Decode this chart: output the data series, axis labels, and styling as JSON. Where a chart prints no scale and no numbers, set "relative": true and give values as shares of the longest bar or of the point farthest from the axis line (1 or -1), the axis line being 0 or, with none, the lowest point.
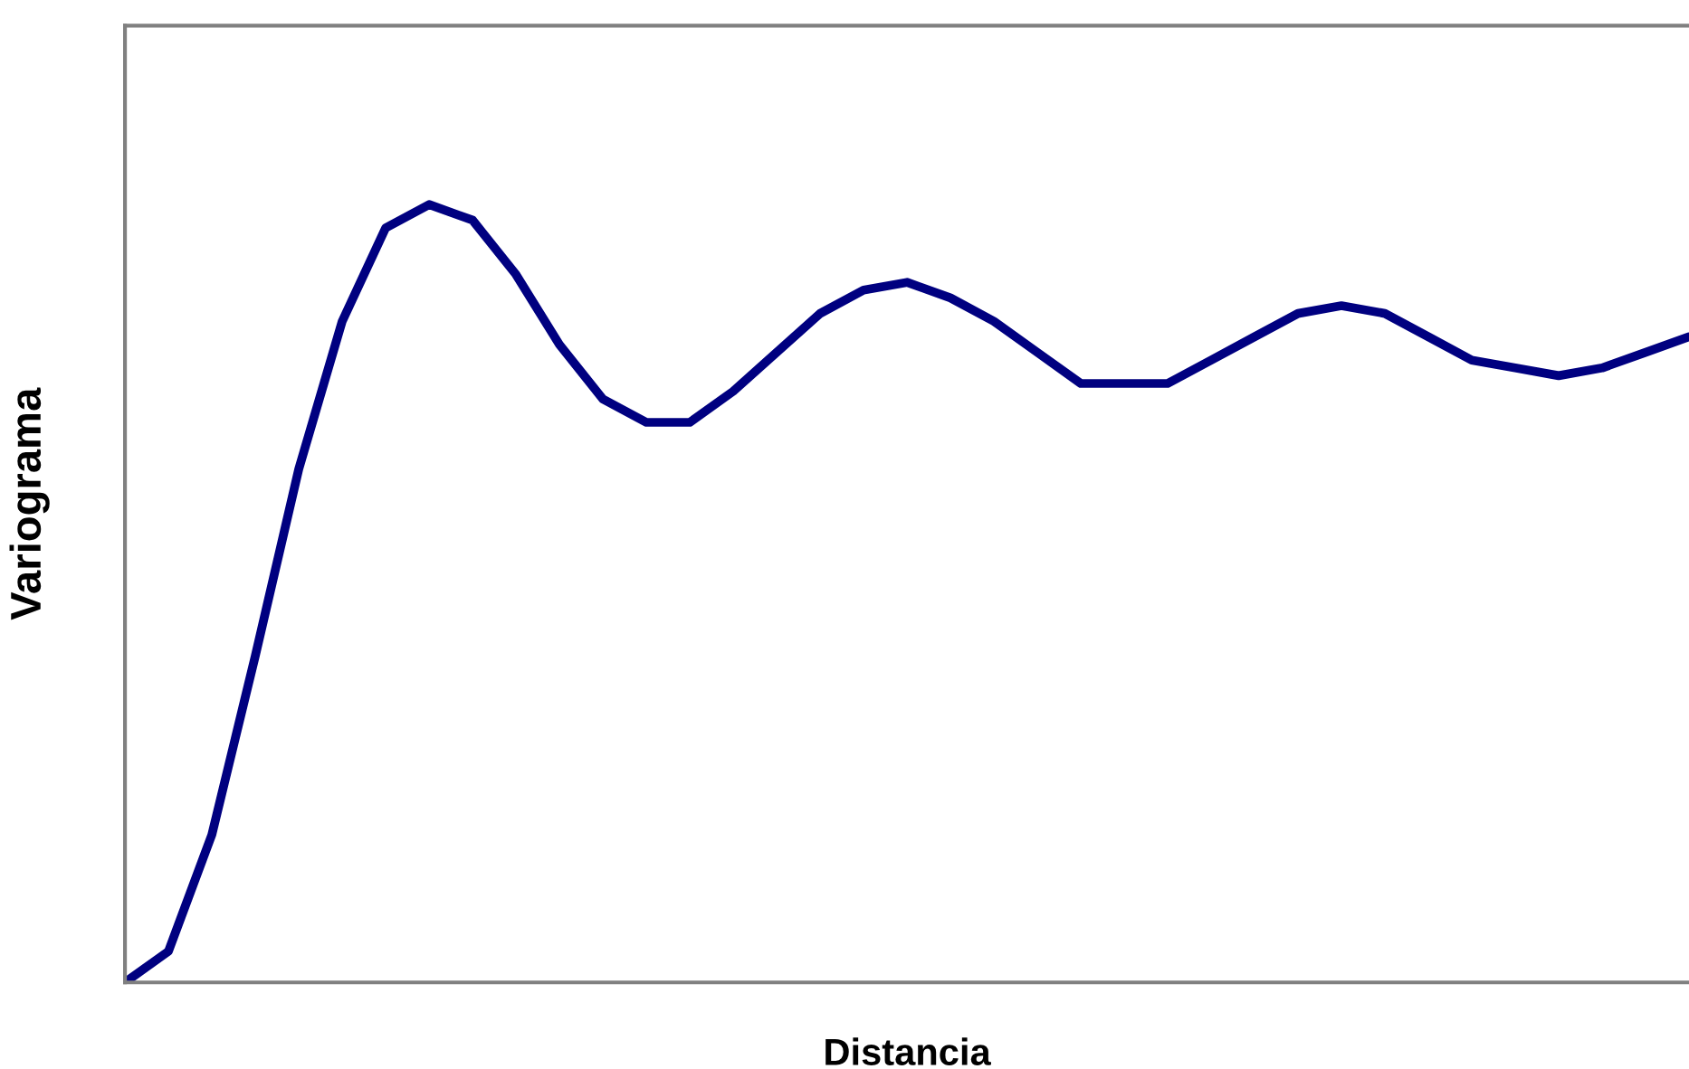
{
  "chart_data": {
    "type": "line",
    "xlabel": "Distancia",
    "ylabel": "Variograma",
    "relative": true,
    "marker": "none",
    "line_style": "solid",
    "categories": [
      null,
      null,
      null,
      null,
      null,
      null,
      null,
      null,
      null,
      null,
      null,
      null,
      null,
      null,
      null,
      null,
      null,
      null,
      null,
      null,
      null,
      null,
      null,
      null,
      null,
      null,
      null,
      null,
      null,
      null,
      null,
      null,
      null,
      null,
      null,
      null,
      null
    ],
    "series": [
      {
        "color": "#000080",
        "values": [
          0,
          0.04,
          0.19,
          0.42,
          0.66,
          0.85,
          0.97,
          1.0,
          0.98,
          0.91,
          0.82,
          0.75,
          0.72,
          0.72,
          0.76,
          0.81,
          0.86,
          0.89,
          0.9,
          0.88,
          0.85,
          0.81,
          0.77,
          0.77,
          0.77,
          0.8,
          0.83,
          0.86,
          0.87,
          0.86,
          0.83,
          0.8,
          0.79,
          0.78,
          0.79,
          0.81,
          0.83
        ]
      }
    ]
  }
}
